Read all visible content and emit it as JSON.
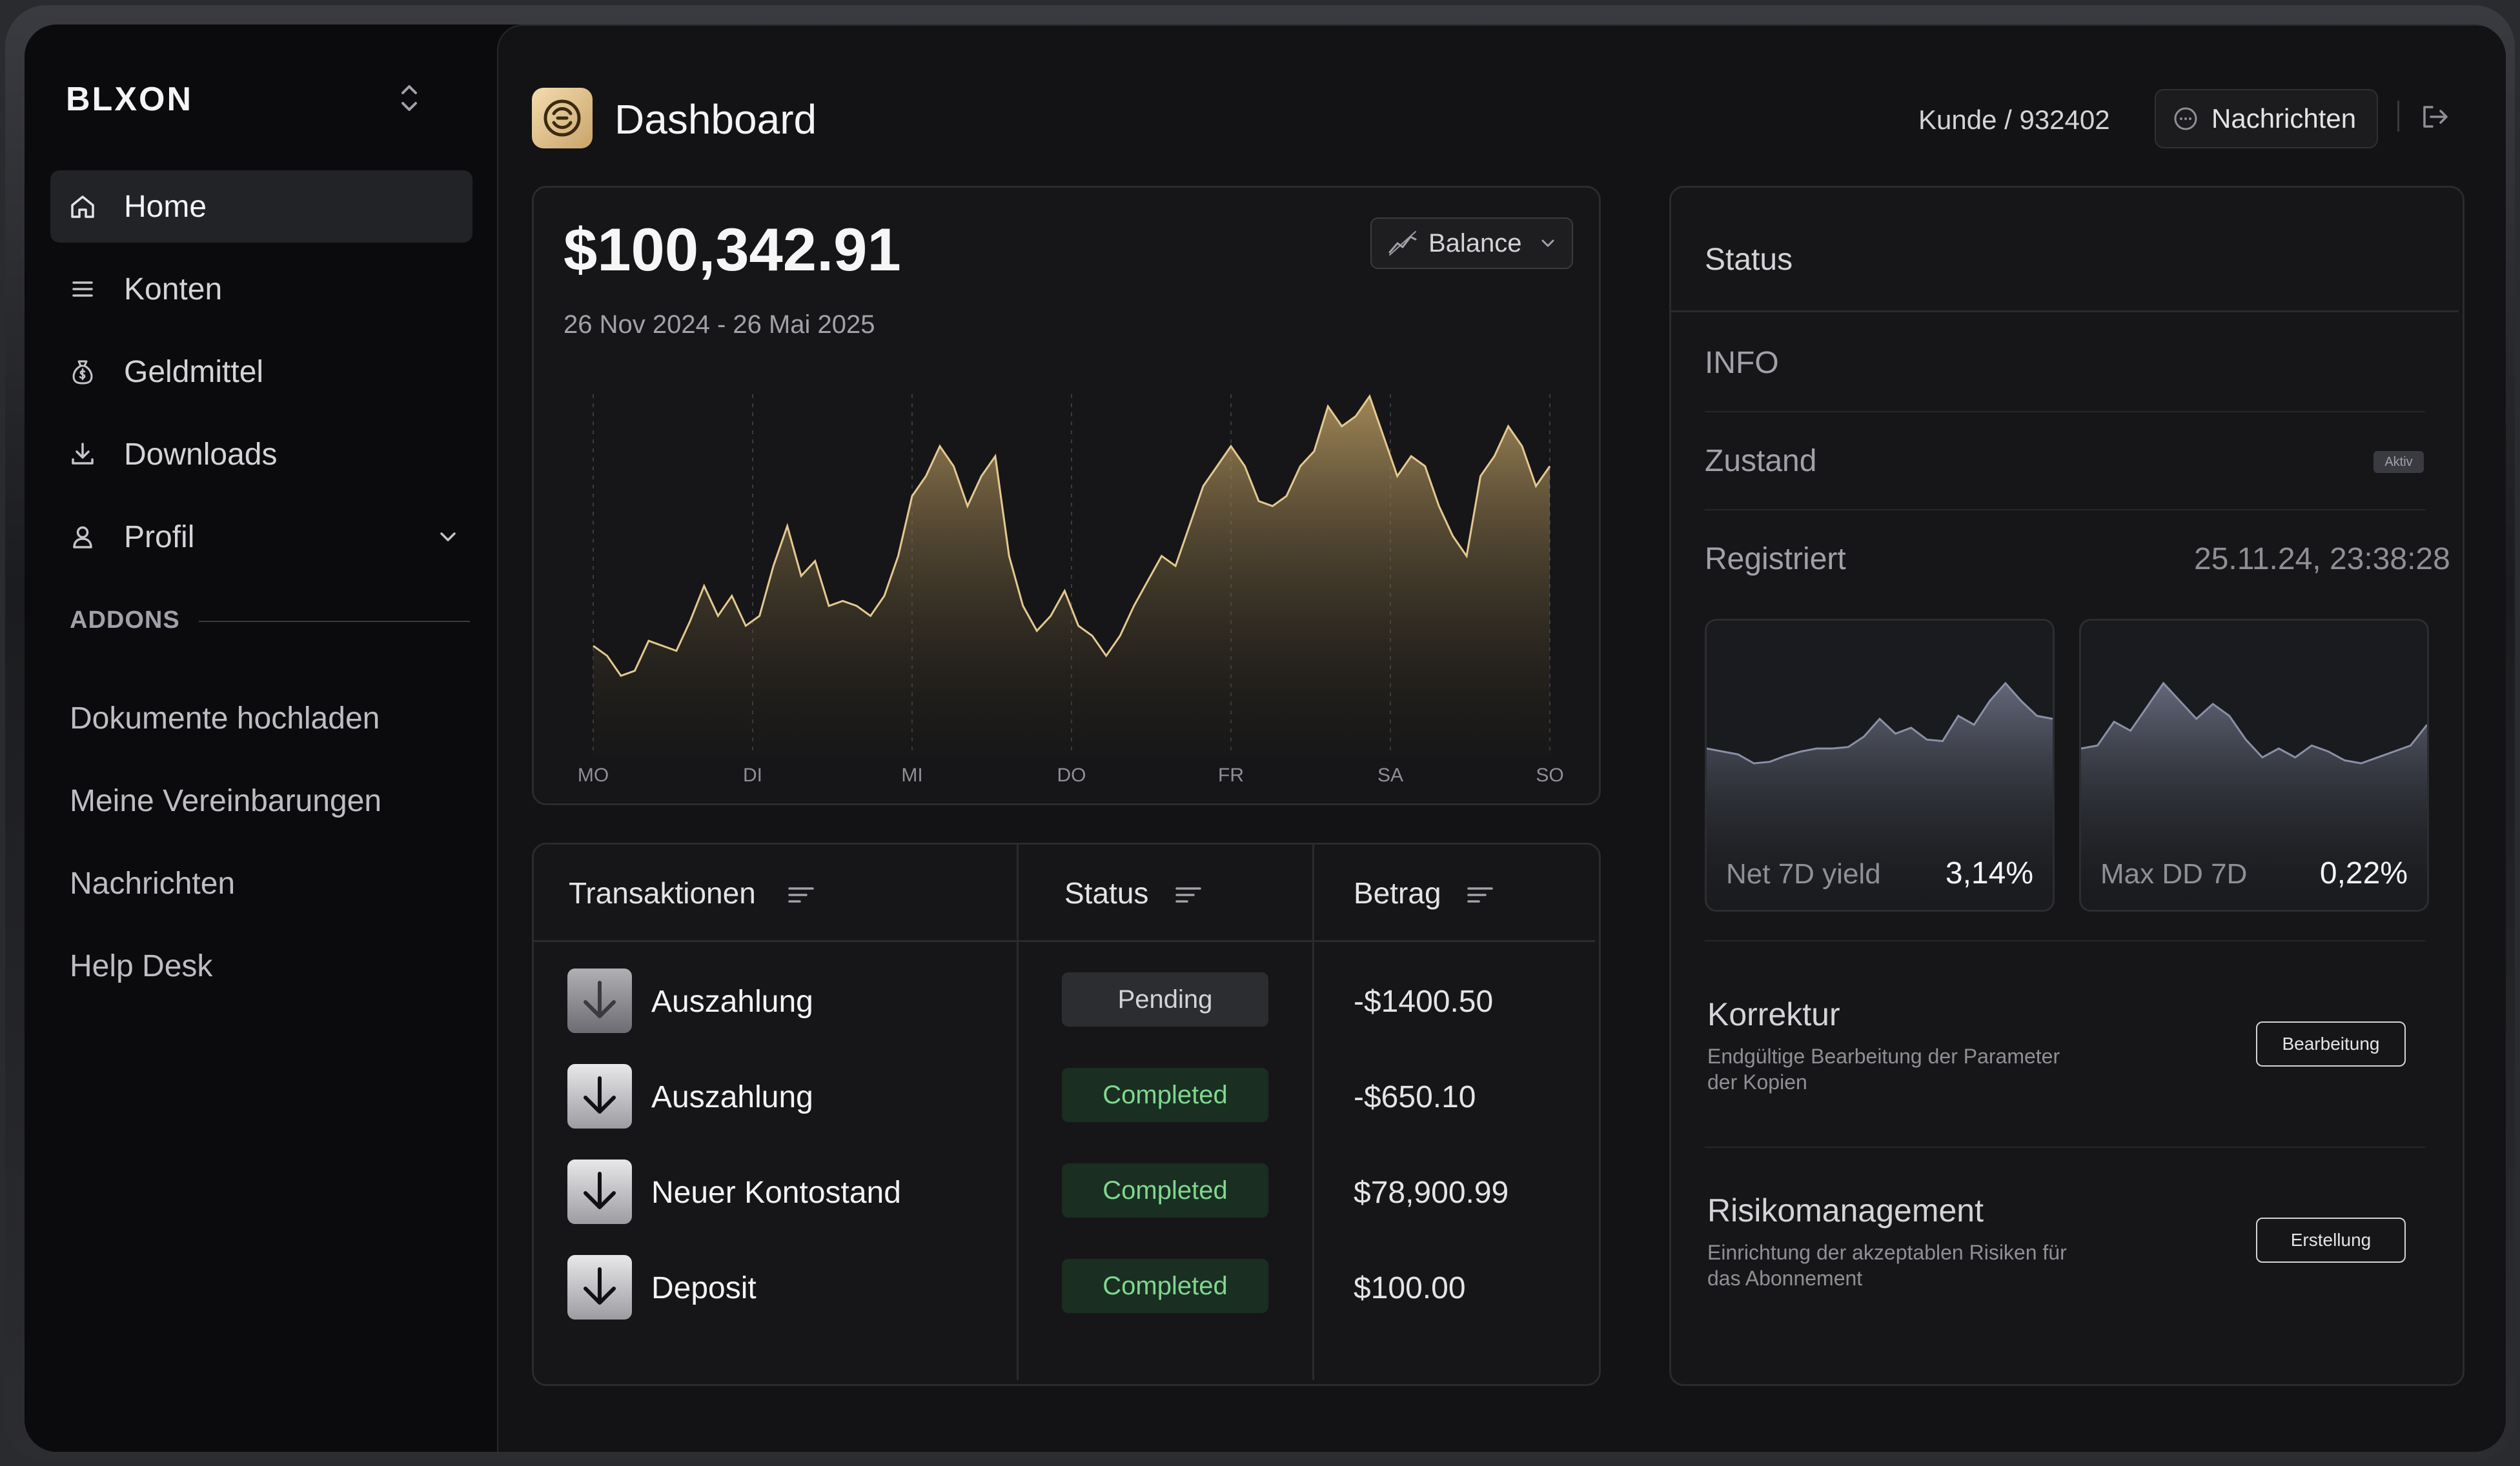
{
  "brand": {
    "logo": "BLXON"
  },
  "sidebar": {
    "items": [
      {
        "label": "Home",
        "icon": "home-icon",
        "active": true
      },
      {
        "label": "Konten",
        "icon": "list-icon"
      },
      {
        "label": "Geldmittel",
        "icon": "money-bag-icon"
      },
      {
        "label": "Downloads",
        "icon": "download-icon"
      },
      {
        "label": "Profil",
        "icon": "user-icon"
      }
    ],
    "addons_heading": "ADDONS",
    "addons": [
      "Dokumente hochladen",
      "Meine Vereinbarungen",
      "Nachrichten",
      "Help Desk"
    ]
  },
  "header": {
    "title": "Dashboard",
    "customer": "Kunde / 932402",
    "messages_label": "Nachrichten"
  },
  "balance": {
    "amount": "$100,342.91",
    "range": "26 Nov 2024 - 26 Mai 2025",
    "selector_label": "Balance"
  },
  "chart_data": {
    "type": "area",
    "categories": [
      "MO",
      "DI",
      "MI",
      "DO",
      "FR",
      "SA",
      "SO"
    ],
    "y": [
      52,
      50,
      46,
      47,
      53,
      52,
      51,
      57,
      64,
      58,
      62,
      56,
      58,
      68,
      76,
      66,
      69,
      60,
      61,
      60,
      58,
      62,
      70,
      82,
      86,
      92,
      88,
      80,
      86,
      90,
      70,
      60,
      55,
      58,
      63,
      56,
      54,
      50,
      54,
      60,
      65,
      70,
      68,
      76,
      84,
      88,
      92,
      88,
      81,
      80,
      82,
      88,
      91,
      100,
      96,
      98,
      102,
      94,
      86,
      90,
      88,
      80,
      74,
      70,
      86,
      90,
      96,
      92,
      84,
      88
    ],
    "grid": true,
    "color": "#e4c98f"
  },
  "transactions": {
    "headers": {
      "name": "Transaktionen",
      "status": "Status",
      "amount": "Betrag"
    },
    "rows": [
      {
        "name": "Auszahlung",
        "status": "Pending",
        "amount": "-$1400.50"
      },
      {
        "name": "Auszahlung",
        "status": "Completed",
        "amount": "-$650.10"
      },
      {
        "name": "Neuer Kontostand",
        "status": "Completed",
        "amount": "$78,900.99"
      },
      {
        "name": "Deposit",
        "status": "Completed",
        "amount": "$100.00"
      }
    ]
  },
  "status_panel": {
    "title": "Status",
    "info": "INFO",
    "zustand_label": "Zustand",
    "zustand_badge": "Aktiv",
    "registriert_label": "Registriert",
    "registriert_value": "25.11.24, 23:38:28",
    "net_yield_label": "Net 7D yield",
    "net_yield_value": "3,14%",
    "max_dd_label": "Max DD 7D",
    "max_dd_value": "0,22%",
    "korrektur": {
      "title": "Korrektur",
      "desc": "Endgültige Bearbeitung der Parameter der Kopien",
      "button": "Bearbeitung"
    },
    "risiko": {
      "title": "Risikomanagement",
      "desc": "Einrichtung der akzeptablen Risiken für das Abonnement",
      "button": "Erstellung"
    }
  },
  "mini_charts": {
    "net_yield": [
      40,
      38,
      36,
      30,
      31,
      35,
      38,
      40,
      40,
      41,
      48,
      60,
      50,
      54,
      46,
      45,
      62,
      56,
      72,
      84,
      72,
      62,
      60
    ],
    "max_dd": [
      40,
      42,
      58,
      52,
      68,
      84,
      72,
      60,
      70,
      62,
      46,
      34,
      40,
      34,
      42,
      38,
      32,
      30,
      34,
      38,
      42,
      56
    ]
  }
}
